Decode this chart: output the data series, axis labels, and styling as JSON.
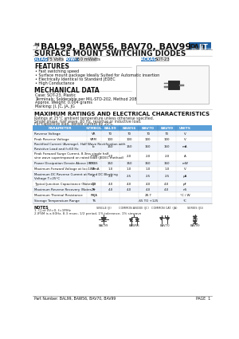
{
  "title_part": "BAL99, BAW56, BAV70, BAV99",
  "subtitle": "SURFACE MOUNT SWITCHING DIODES",
  "voltage_label": "VOLTAGE",
  "voltage_value": "75 Volts",
  "power_label": "POWER",
  "power_value": "350 mWatts",
  "package_label": "PACKAGE",
  "package_value": "SOT-23",
  "features_title": "FEATURES",
  "features": [
    "Fast switching speed",
    "Surface mount package Ideally Suited for Automatic insertion",
    "Electrically Identical to Standard JEDEC",
    "High Conductance"
  ],
  "mech_title": "MECHANICAL DATA",
  "mech_lines": [
    "Case: SOT-23, Plastic",
    "Terminals: Solderable per MIL-STD-202, Method 208",
    "Approx. Weight: 0.004 grams",
    "Marking: JI, JC, JA, JG"
  ],
  "table_title": "MAXIMUM RATINGS AND ELECTRICAL CHARACTERISTICS",
  "table_note1": "Ratings at 25°C ambient temperature unless otherwise specified.",
  "table_note2": "Single phase, half wave, 60 Hz, resistive or inductive load.",
  "table_note3": "For capacitive load, derate current by 20%.",
  "col_headers": [
    "PARAMETER",
    "SYMBOL",
    "BAL99",
    "BAW56",
    "BAV70",
    "BAV99",
    "UNITS"
  ],
  "rows": [
    [
      "Reverse Voltage",
      "VR",
      "70",
      "70",
      "70",
      "70",
      "V"
    ],
    [
      "Peak Reverse Voltage",
      "VRM",
      "100",
      "100",
      "100",
      "100",
      "V"
    ],
    [
      "Rectified Current (Average), Half Wave Rectification with\nResistive Load and f=60 Hz",
      "Io",
      "150",
      "150",
      "150",
      "150",
      "mA"
    ],
    [
      "Peak Forward Surge Current, 8.3ms single half\nsine wave superimposed on rated load (JEDEC method)",
      "IFSM",
      "2.0",
      "2.0",
      "2.0",
      "2.0",
      "A"
    ],
    [
      "Power Dissipation Derate Above 25°C",
      "PDISS",
      "350",
      "350",
      "350",
      "350",
      "mW"
    ],
    [
      "Maximum Forward Voltage at Io=100mA",
      "VF",
      "1.0",
      "1.0",
      "1.0",
      "1.0",
      "V"
    ],
    [
      "Maximum DC Reverse Current at Rated DC Blocking\nVoltage T=25°C",
      "IR",
      "2.5",
      "2.5",
      "2.5",
      "2.5",
      "μA"
    ],
    [
      "Typical Junction Capacitance (Notes1)",
      "CJ0",
      "4.0",
      "4.0",
      "4.0",
      "4.0",
      "pF"
    ],
    [
      "Maximum Reverse Recovery (Notes2)",
      "Trr",
      "4.0",
      "4.0",
      "4.0",
      "4.0",
      "nS"
    ],
    [
      "Maximum Thermal Resistance",
      "RθJA",
      "",
      "",
      "28.7",
      "",
      "°C / W"
    ],
    [
      "Storage Temperature Range",
      "TS",
      "",
      "",
      "-65 TO +125",
      "",
      "°C"
    ]
  ],
  "note_title": "NOTES",
  "note1": "1. CJ at 0V=0, f=1MHz",
  "note2": "2.IFSM is a 60Hz, 8.3 msec, 1/2 period, 1% tolerance, 1% sinwave",
  "diode_labels": [
    "SINGLE (JI)",
    "COMMON ANODE (JC)",
    "COMMON CAT. (JA)",
    "SERIES (JG)"
  ],
  "diode_names": [
    "BAL99",
    "BAW56",
    "BAV70",
    "BAV99"
  ],
  "part_numbers": "Part Number: BAL99, BAW56, BAV70, BAV99",
  "page": "PAGE  1",
  "badge_blue": "#3a7fc1",
  "badge_blue2": "#4a8fd4",
  "bg_color": "#ffffff",
  "table_header_bg": "#5a9fd8",
  "table_row_alt": "#eef3fb",
  "text_color": "#1a1a1a",
  "border_color": "#999999",
  "line_color": "#aaaaaa"
}
